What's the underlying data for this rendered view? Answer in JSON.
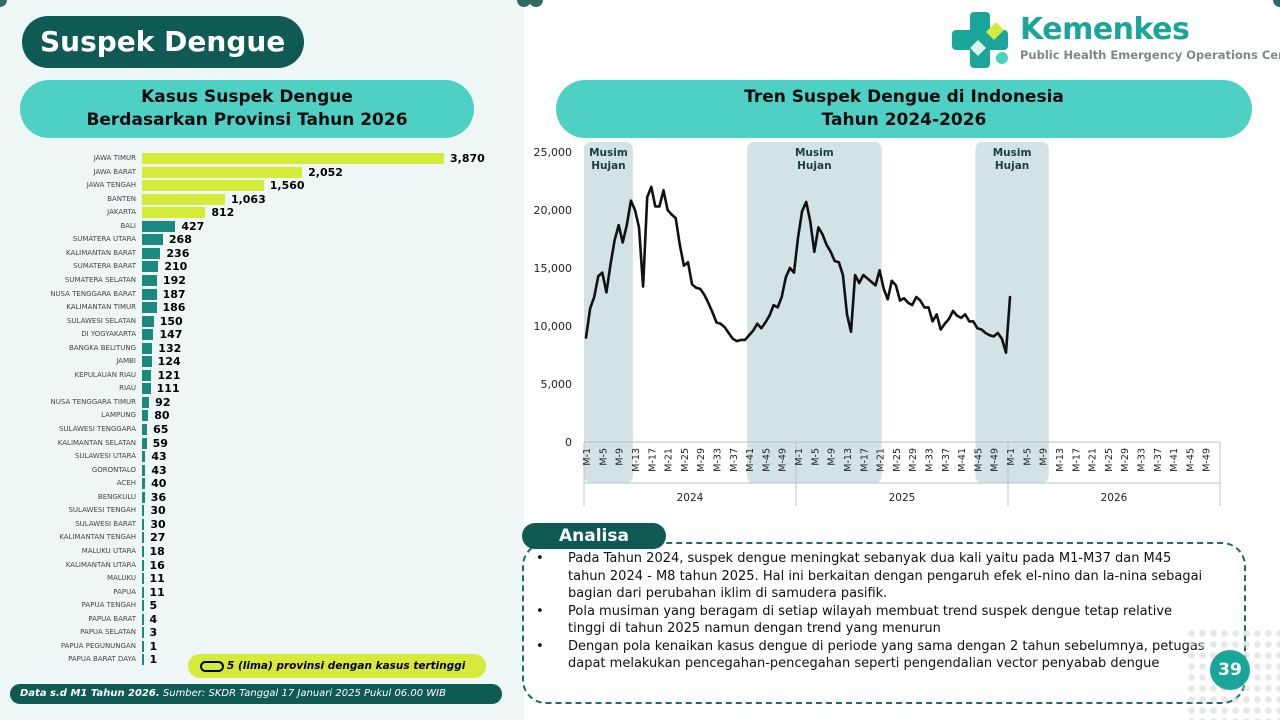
{
  "page_title": "Suspek Dengue",
  "logo": {
    "name": "Kemenkes",
    "subtitle": "Public Health Emergency Operations Center"
  },
  "left_header": {
    "line1": "Kasus Suspek Dengue",
    "line2": "Berdasarkan Provinsi Tahun 2026"
  },
  "right_header": {
    "line1": "Tren Suspek Dengue di Indonesia",
    "line2": "Tahun 2024-2026"
  },
  "legend_text": "5 (lima) provinsi dengan kasus tertinggi",
  "footer": {
    "bold": "Data s.d M1 Tahun 2026.",
    "rest": " Sumber: SKDR Tanggal 17 Januari 2025 Pukul 06.00 WIB"
  },
  "analysis": {
    "title": "Analisa",
    "items": [
      "Pada Tahun 2024, suspek dengue meningkat sebanyak dua kali yaitu pada M1-M37 dan M45 tahun 2024 - M8 tahun 2025. Hal ini berkaitan dengan pengaruh efek el-nino dan la-nina sebagai bagian dari perubahan iklim  di samudera pasifik.",
      "Pola musiman yang beragam di setiap wilayah membuat trend suspek dengue tetap relative tinggi di tahun 2025 namun dengan trend yang menurun",
      "Dengan pola kenaikan kasus dengue di periode yang sama dengan 2 tahun sebelumnya, petugas dapat melakukan pencegahan-pencegahan seperti pengendalian vector penyabab dengue"
    ]
  },
  "page_number": "39",
  "colors": {
    "top5": "#d6ea3a",
    "other": "#1a8a80",
    "season": "#d3e2e4",
    "line": "#111111",
    "accent": "#1aa59a",
    "dark": "#0f5a55"
  },
  "chart_data": [
    {
      "type": "bar",
      "orientation": "horizontal",
      "categories": [
        "JAWA TIMUR",
        "JAWA BARAT",
        "JAWA TENGAH",
        "BANTEN",
        "JAKARTA",
        "BALI",
        "SUMATERA UTARA",
        "KALIMANTAN BARAT",
        "SUMATERA BARAT",
        "SUMATERA SELATAN",
        "NUSA TENGGARA BARAT",
        "KALIMANTAN TIMUR",
        "SULAWESI SELATAN",
        "DI YOGYAKARTA",
        "BANGKA BELITUNG",
        "JAMBI",
        "KEPULAUAN RIAU",
        "RIAU",
        "NUSA TENGGARA TIMUR",
        "LAMPUNG",
        "SULAWESI TENGGARA",
        "KALIMANTAN SELATAN",
        "SULAWESI UTARA",
        "GORONTALO",
        "ACEH",
        "BENGKULU",
        "SULAWESI TENGAH",
        "SULAWESI BARAT",
        "KALIMANTAN TENGAH",
        "MALUKU UTARA",
        "KALIMANTAN UTARA",
        "MALUKU",
        "PAPUA",
        "PAPUA TENGAH",
        "PAPUA BARAT",
        "PAPUA SELATAN",
        "PAPUA PEGUNUNGAN",
        "PAPUA BARAT DAYA"
      ],
      "values": [
        3870,
        2052,
        1560,
        1063,
        812,
        427,
        268,
        236,
        210,
        192,
        187,
        186,
        150,
        147,
        132,
        124,
        121,
        111,
        92,
        80,
        65,
        59,
        43,
        43,
        40,
        36,
        30,
        30,
        27,
        18,
        16,
        11,
        11,
        5,
        4,
        3,
        1,
        1
      ],
      "value_labels": [
        "3,870",
        "2,052",
        "1,560",
        "1,063",
        "812",
        "427",
        "268",
        "236",
        "210",
        "192",
        "187",
        "186",
        "150",
        "147",
        "132",
        "124",
        "121",
        "111",
        "92",
        "80",
        "65",
        "59",
        "43",
        "43",
        "40",
        "36",
        "30",
        "30",
        "27",
        "18",
        "16",
        "11",
        "11",
        "5",
        "4",
        "3",
        "1",
        "1"
      ],
      "highlight_top": 5
    },
    {
      "type": "line",
      "ylim": [
        0,
        25000
      ],
      "yticks": [
        "0",
        "5,000",
        "10,000",
        "15,000",
        "20,000",
        "25,000"
      ],
      "ytick_values": [
        0,
        5000,
        10000,
        15000,
        20000,
        25000
      ],
      "weeks_per_year": 52,
      "year_labels": [
        "2024",
        "2025",
        "2026"
      ],
      "week_ticks": [
        "M-1",
        "M-5",
        "M-9",
        "M-13",
        "M-17",
        "M-21",
        "M-25",
        "M-29",
        "M-33",
        "M-37",
        "M-41",
        "M-45",
        "M-49"
      ],
      "season_label": "Musim Hujan",
      "season_bands": [
        [
          1,
          12
        ],
        [
          41,
          73
        ],
        [
          97,
          114
        ]
      ],
      "x": [
        1,
        2,
        3,
        4,
        5,
        6,
        7,
        8,
        9,
        10,
        11,
        12,
        13,
        14,
        15,
        16,
        17,
        18,
        19,
        20,
        21,
        22,
        23,
        24,
        25,
        26,
        27,
        28,
        29,
        30,
        31,
        32,
        33,
        34,
        35,
        36,
        37,
        38,
        39,
        40,
        41,
        42,
        43,
        44,
        45,
        46,
        47,
        48,
        49,
        50,
        51,
        52,
        53,
        54,
        55,
        56,
        57,
        58,
        59,
        60,
        61,
        62,
        63,
        64,
        65,
        66,
        67,
        68,
        69,
        70,
        71,
        72,
        73,
        74,
        75,
        76,
        77,
        78,
        79,
        80,
        81,
        82,
        83,
        84,
        85,
        86,
        87,
        88,
        89,
        90,
        91,
        92,
        93,
        94,
        95,
        96,
        97,
        98,
        99,
        100,
        101,
        102,
        103,
        104,
        105,
        106
      ],
      "y": [
        9000,
        11500,
        12500,
        14300,
        14600,
        12900,
        15300,
        17400,
        18700,
        17200,
        18700,
        20800,
        20000,
        18500,
        13400,
        21100,
        22000,
        20300,
        20300,
        21700,
        20000,
        19600,
        19300,
        17000,
        15200,
        15500,
        13600,
        13300,
        13200,
        12700,
        12000,
        11200,
        10300,
        10200,
        9900,
        9400,
        8900,
        8700,
        8800,
        8800,
        9200,
        9600,
        10200,
        9800,
        10300,
        10900,
        11800,
        11600,
        12500,
        14200,
        15000,
        14600,
        17600,
        19900,
        20700,
        19000,
        16400,
        18500,
        17900,
        17000,
        16400,
        15600,
        15500,
        14400,
        11000,
        9500,
        14400,
        13700,
        14400,
        14100,
        13800,
        13500,
        14800,
        13200,
        12300,
        13900,
        13500,
        12200,
        12400,
        12000,
        11800,
        12500,
        12200,
        11600,
        11600,
        10400,
        11000,
        9700,
        10200,
        10600,
        11300,
        10900,
        10700,
        11000,
        10400,
        10400,
        9800,
        9700,
        9400,
        9200,
        9100,
        9400,
        8900,
        7700,
        12500,
        null
      ]
    }
  ]
}
